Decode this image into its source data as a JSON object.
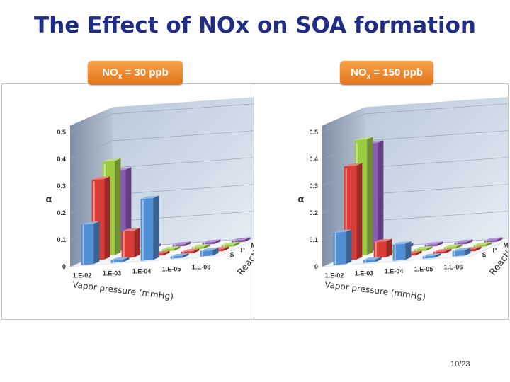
{
  "title": "The Effect of NOx on SOA formation",
  "page_number": "10/23",
  "badges": {
    "left": {
      "prefix": "NO",
      "sub": "x",
      "suffix": " = 30 ppb"
    },
    "right": {
      "prefix": "NO",
      "sub": "x",
      "suffix": " = 150 ppb"
    }
  },
  "colors": {
    "S": "#4f8fd6",
    "P": "#d93b36",
    "M": "#9bcc3f",
    "F": "#8a5ab7",
    "wall": "#a9b7c9"
  },
  "chart_data": [
    {
      "type": "bar3d",
      "condition": "NOx = 30 ppb",
      "zlabel": "α",
      "xlabel": "Vapor pressure (mmHg)",
      "ylabel": "Reactivity",
      "x_categories": [
        "1.E-02",
        "1.E-03",
        "1.E-04",
        "1.E-05",
        "1.E-06"
      ],
      "y_categories": [
        "S",
        "P",
        "M",
        "F"
      ],
      "z_ticks": [
        "0",
        "0.1",
        "0.2",
        "0.3",
        "0.4",
        "0.5"
      ],
      "zlim": [
        0,
        0.5
      ],
      "series": [
        {
          "name": "S",
          "values": [
            0.15,
            0.01,
            0.23,
            0.0,
            0.02
          ]
        },
        {
          "name": "P",
          "values": [
            0.3,
            0.1,
            0.0,
            0.0,
            0.0
          ]
        },
        {
          "name": "M",
          "values": [
            0.35,
            0.0,
            0.0,
            0.0,
            0.0
          ]
        },
        {
          "name": "F",
          "values": [
            0.3,
            0.0,
            0.0,
            0.0,
            0.0
          ]
        }
      ]
    },
    {
      "type": "bar3d",
      "condition": "NOx = 150 ppb",
      "zlabel": "α",
      "xlabel": "Vapor pressure (mmHg)",
      "ylabel": "Reactivity",
      "x_categories": [
        "1.E-02",
        "1.E-03",
        "1.E-04",
        "1.E-05",
        "1.E-06"
      ],
      "y_categories": [
        "S",
        "P",
        "M",
        "F"
      ],
      "z_ticks": [
        "0",
        "0.1",
        "0.2",
        "0.3",
        "0.4",
        "0.5"
      ],
      "zlim": [
        0,
        0.5
      ],
      "series": [
        {
          "name": "S",
          "values": [
            0.12,
            0.01,
            0.06,
            0.0,
            0.02
          ]
        },
        {
          "name": "P",
          "values": [
            0.35,
            0.06,
            0.0,
            0.0,
            0.0
          ]
        },
        {
          "name": "M",
          "values": [
            0.43,
            0.01,
            0.0,
            0.0,
            0.0
          ]
        },
        {
          "name": "F",
          "values": [
            0.4,
            0.01,
            0.0,
            0.0,
            0.0
          ]
        }
      ]
    }
  ]
}
